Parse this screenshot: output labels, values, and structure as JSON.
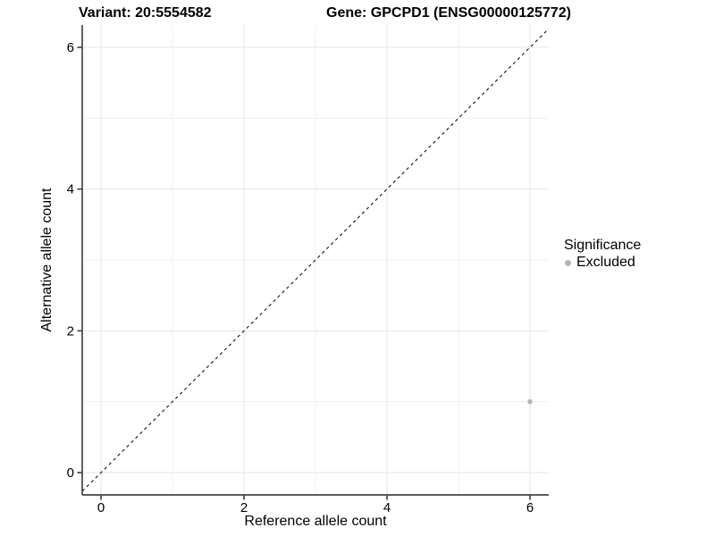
{
  "chart_data": {
    "type": "scatter",
    "titles": {
      "left": "Variant: 20:5554582",
      "right": "Gene: GPCPD1 (ENSG00000125772)"
    },
    "xlabel": "Reference allele count",
    "ylabel": "Alternative allele count",
    "xlim": [
      -0.2625,
      6.2625
    ],
    "ylim": [
      -0.315,
      6.315
    ],
    "x_major_ticks": [
      0,
      2,
      4,
      6
    ],
    "y_major_ticks": [
      0,
      2,
      4,
      6
    ],
    "x_minor_ticks": [
      1,
      3,
      5
    ],
    "y_minor_ticks": [
      1,
      3,
      5
    ],
    "grid": true,
    "reference_line": {
      "type": "identity",
      "style": "dashed",
      "color": "#111111"
    },
    "series": [
      {
        "name": "Excluded",
        "color": "#b4b4b4",
        "points": [
          {
            "x": 6,
            "y": 1
          }
        ]
      }
    ],
    "legend": {
      "title": "Significance",
      "position": "right",
      "entries": [
        {
          "label": "Excluded",
          "color": "#b4b4b4"
        }
      ]
    },
    "colors": {
      "grid_major": "#e4e4e4",
      "grid_minor": "#f0f0f0",
      "axis": "#454545",
      "tick_label": "#000000",
      "background": "#ffffff"
    }
  }
}
